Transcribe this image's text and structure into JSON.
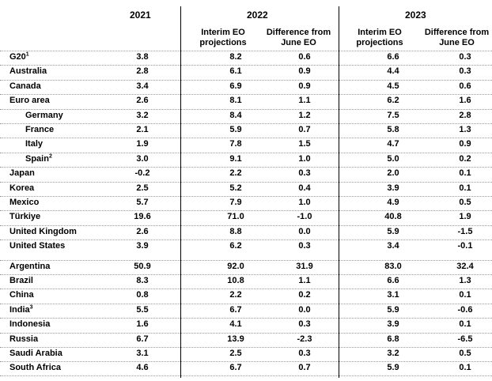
{
  "header": {
    "y2021": "2021",
    "y2022": "2022",
    "y2023": "2023",
    "interim_2022": "Interim EO projections",
    "diff_2022": "Difference from June EO",
    "interim_2023": "Interim EO projections",
    "diff_2023": "Difference from June EO"
  },
  "rows": [
    {
      "country": "G20",
      "sup": "1",
      "v2021": "3.8",
      "i2022": "8.2",
      "d2022": "0.6",
      "i2023": "6.6",
      "d2023": "0.3"
    },
    {
      "country": "Australia",
      "sup": "",
      "v2021": "2.8",
      "i2022": "6.1",
      "d2022": "0.9",
      "i2023": "4.4",
      "d2023": "0.3"
    },
    {
      "country": "Canada",
      "sup": "",
      "v2021": "3.4",
      "i2022": "6.9",
      "d2022": "0.9",
      "i2023": "4.5",
      "d2023": "0.6"
    },
    {
      "country": "Euro area",
      "sup": "",
      "v2021": "2.6",
      "i2022": "8.1",
      "d2022": "1.1",
      "i2023": "6.2",
      "d2023": "1.6"
    },
    {
      "country": "Germany",
      "sup": "",
      "v2021": "3.2",
      "i2022": "8.4",
      "d2022": "1.2",
      "i2023": "7.5",
      "d2023": "2.8"
    },
    {
      "country": "France",
      "sup": "",
      "v2021": "2.1",
      "i2022": "5.9",
      "d2022": "0.7",
      "i2023": "5.8",
      "d2023": "1.3"
    },
    {
      "country": "Italy",
      "sup": "",
      "v2021": "1.9",
      "i2022": "7.8",
      "d2022": "1.5",
      "i2023": "4.7",
      "d2023": "0.9"
    },
    {
      "country": "Spain",
      "sup": "2",
      "v2021": "3.0",
      "i2022": "9.1",
      "d2022": "1.0",
      "i2023": "5.0",
      "d2023": "0.2"
    },
    {
      "country": "Japan",
      "sup": "",
      "v2021": "-0.2",
      "i2022": "2.2",
      "d2022": "0.3",
      "i2023": "2.0",
      "d2023": "0.1"
    },
    {
      "country": "Korea",
      "sup": "",
      "v2021": "2.5",
      "i2022": "5.2",
      "d2022": "0.4",
      "i2023": "3.9",
      "d2023": "0.1"
    },
    {
      "country": "Mexico",
      "sup": "",
      "v2021": "5.7",
      "i2022": "7.9",
      "d2022": "1.0",
      "i2023": "4.9",
      "d2023": "0.5"
    },
    {
      "country": "Türkiye",
      "sup": "",
      "v2021": "19.6",
      "i2022": "71.0",
      "d2022": "-1.0",
      "i2023": "40.8",
      "d2023": "1.9"
    },
    {
      "country": "United Kingdom",
      "sup": "",
      "v2021": "2.6",
      "i2022": "8.8",
      "d2022": "0.0",
      "i2023": "5.9",
      "d2023": "-1.5"
    },
    {
      "country": "United States",
      "sup": "",
      "v2021": "3.9",
      "i2022": "6.2",
      "d2022": "0.3",
      "i2023": "3.4",
      "d2023": "-0.1"
    },
    {
      "country": "Argentina",
      "sup": "",
      "v2021": "50.9",
      "i2022": "92.0",
      "d2022": "31.9",
      "i2023": "83.0",
      "d2023": "32.4"
    },
    {
      "country": "Brazil",
      "sup": "",
      "v2021": "8.3",
      "i2022": "10.8",
      "d2022": "1.1",
      "i2023": "6.6",
      "d2023": "1.3"
    },
    {
      "country": "China",
      "sup": "",
      "v2021": "0.8",
      "i2022": "2.2",
      "d2022": "0.2",
      "i2023": "3.1",
      "d2023": "0.1"
    },
    {
      "country": "India",
      "sup": "3",
      "v2021": "5.5",
      "i2022": "6.7",
      "d2022": "0.0",
      "i2023": "5.9",
      "d2023": "-0.6"
    },
    {
      "country": "Indonesia",
      "sup": "",
      "v2021": "1.6",
      "i2022": "4.1",
      "d2022": "0.3",
      "i2023": "3.9",
      "d2023": "0.1"
    },
    {
      "country": "Russia",
      "sup": "",
      "v2021": "6.7",
      "i2022": "13.9",
      "d2022": "-2.3",
      "i2023": "6.8",
      "d2023": "-6.5"
    },
    {
      "country": "Saudi Arabia",
      "sup": "",
      "v2021": "3.1",
      "i2022": "2.5",
      "d2022": "0.3",
      "i2023": "3.2",
      "d2023": "0.5"
    },
    {
      "country": "South Africa",
      "sup": "",
      "v2021": "4.6",
      "i2022": "6.7",
      "d2022": "0.7",
      "i2023": "5.9",
      "d2023": "0.1"
    }
  ]
}
